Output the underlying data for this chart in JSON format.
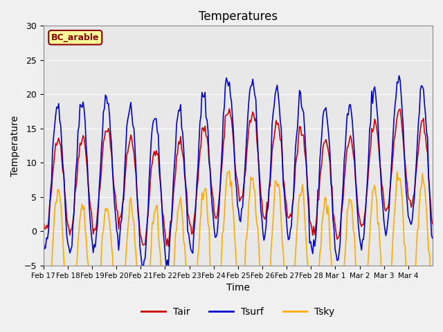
{
  "title": "Temperatures",
  "xlabel": "Time",
  "ylabel": "Temperature",
  "ylim": [
    -5,
    30
  ],
  "background_color": "#f0f0f0",
  "axes_bg_color": "#e8e8e8",
  "legend_labels": [
    "Tair",
    "Tsurf",
    "Tsky"
  ],
  "legend_colors": [
    "#cc0000",
    "#0000cc",
    "#ffaa00"
  ],
  "site_label": "BC_arable",
  "site_label_bg": "#ffff99",
  "site_label_border": "#8b0000",
  "xtick_labels": [
    "Feb 17",
    "Feb 18",
    "Feb 19",
    "Feb 20",
    "Feb 21",
    "Feb 22",
    "Feb 23",
    "Feb 24",
    "Feb 25",
    "Feb 26",
    "Feb 27",
    "Feb 28",
    "Mar 1",
    "Mar 2",
    "Mar 3",
    "Mar 4"
  ],
  "grid_color": "#ffffff",
  "line_width": 1.2
}
